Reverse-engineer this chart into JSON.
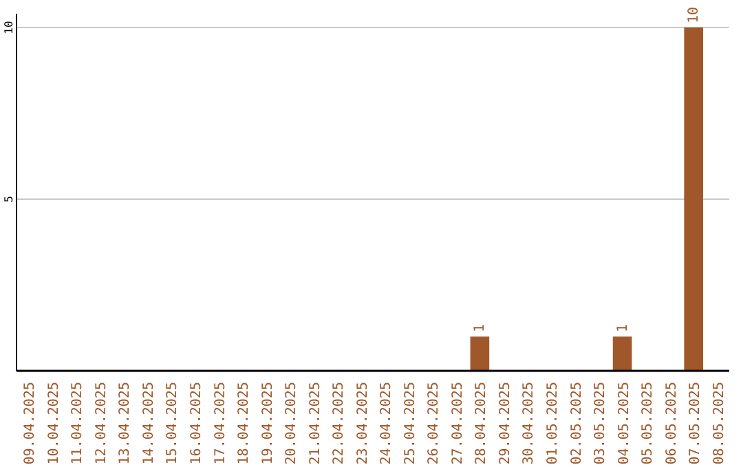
{
  "chart_data": {
    "type": "bar",
    "categories": [
      "09.04.2025",
      "10.04.2025",
      "11.04.2025",
      "12.04.2025",
      "13.04.2025",
      "14.04.2025",
      "15.04.2025",
      "16.04.2025",
      "17.04.2025",
      "18.04.2025",
      "19.04.2025",
      "20.04.2025",
      "21.04.2025",
      "22.04.2025",
      "23.04.2025",
      "24.04.2025",
      "25.04.2025",
      "26.04.2025",
      "27.04.2025",
      "28.04.2025",
      "29.04.2025",
      "30.04.2025",
      "01.05.2025",
      "02.05.2025",
      "03.05.2025",
      "04.05.2025",
      "05.05.2025",
      "06.05.2025",
      "07.05.2025",
      "08.05.2025"
    ],
    "values": [
      0,
      0,
      0,
      0,
      0,
      0,
      0,
      0,
      0,
      0,
      0,
      0,
      0,
      0,
      0,
      0,
      0,
      0,
      0,
      1,
      0,
      0,
      0,
      0,
      0,
      1,
      0,
      0,
      10,
      0
    ],
    "value_labels": [
      null,
      null,
      null,
      null,
      null,
      null,
      null,
      null,
      null,
      null,
      null,
      null,
      null,
      null,
      null,
      null,
      null,
      null,
      null,
      "1",
      null,
      null,
      null,
      null,
      null,
      "1",
      null,
      null,
      "10",
      null
    ],
    "color": "#a0582a",
    "ylim": [
      0,
      10
    ],
    "yticks": [
      5,
      10
    ],
    "grid": "y"
  }
}
